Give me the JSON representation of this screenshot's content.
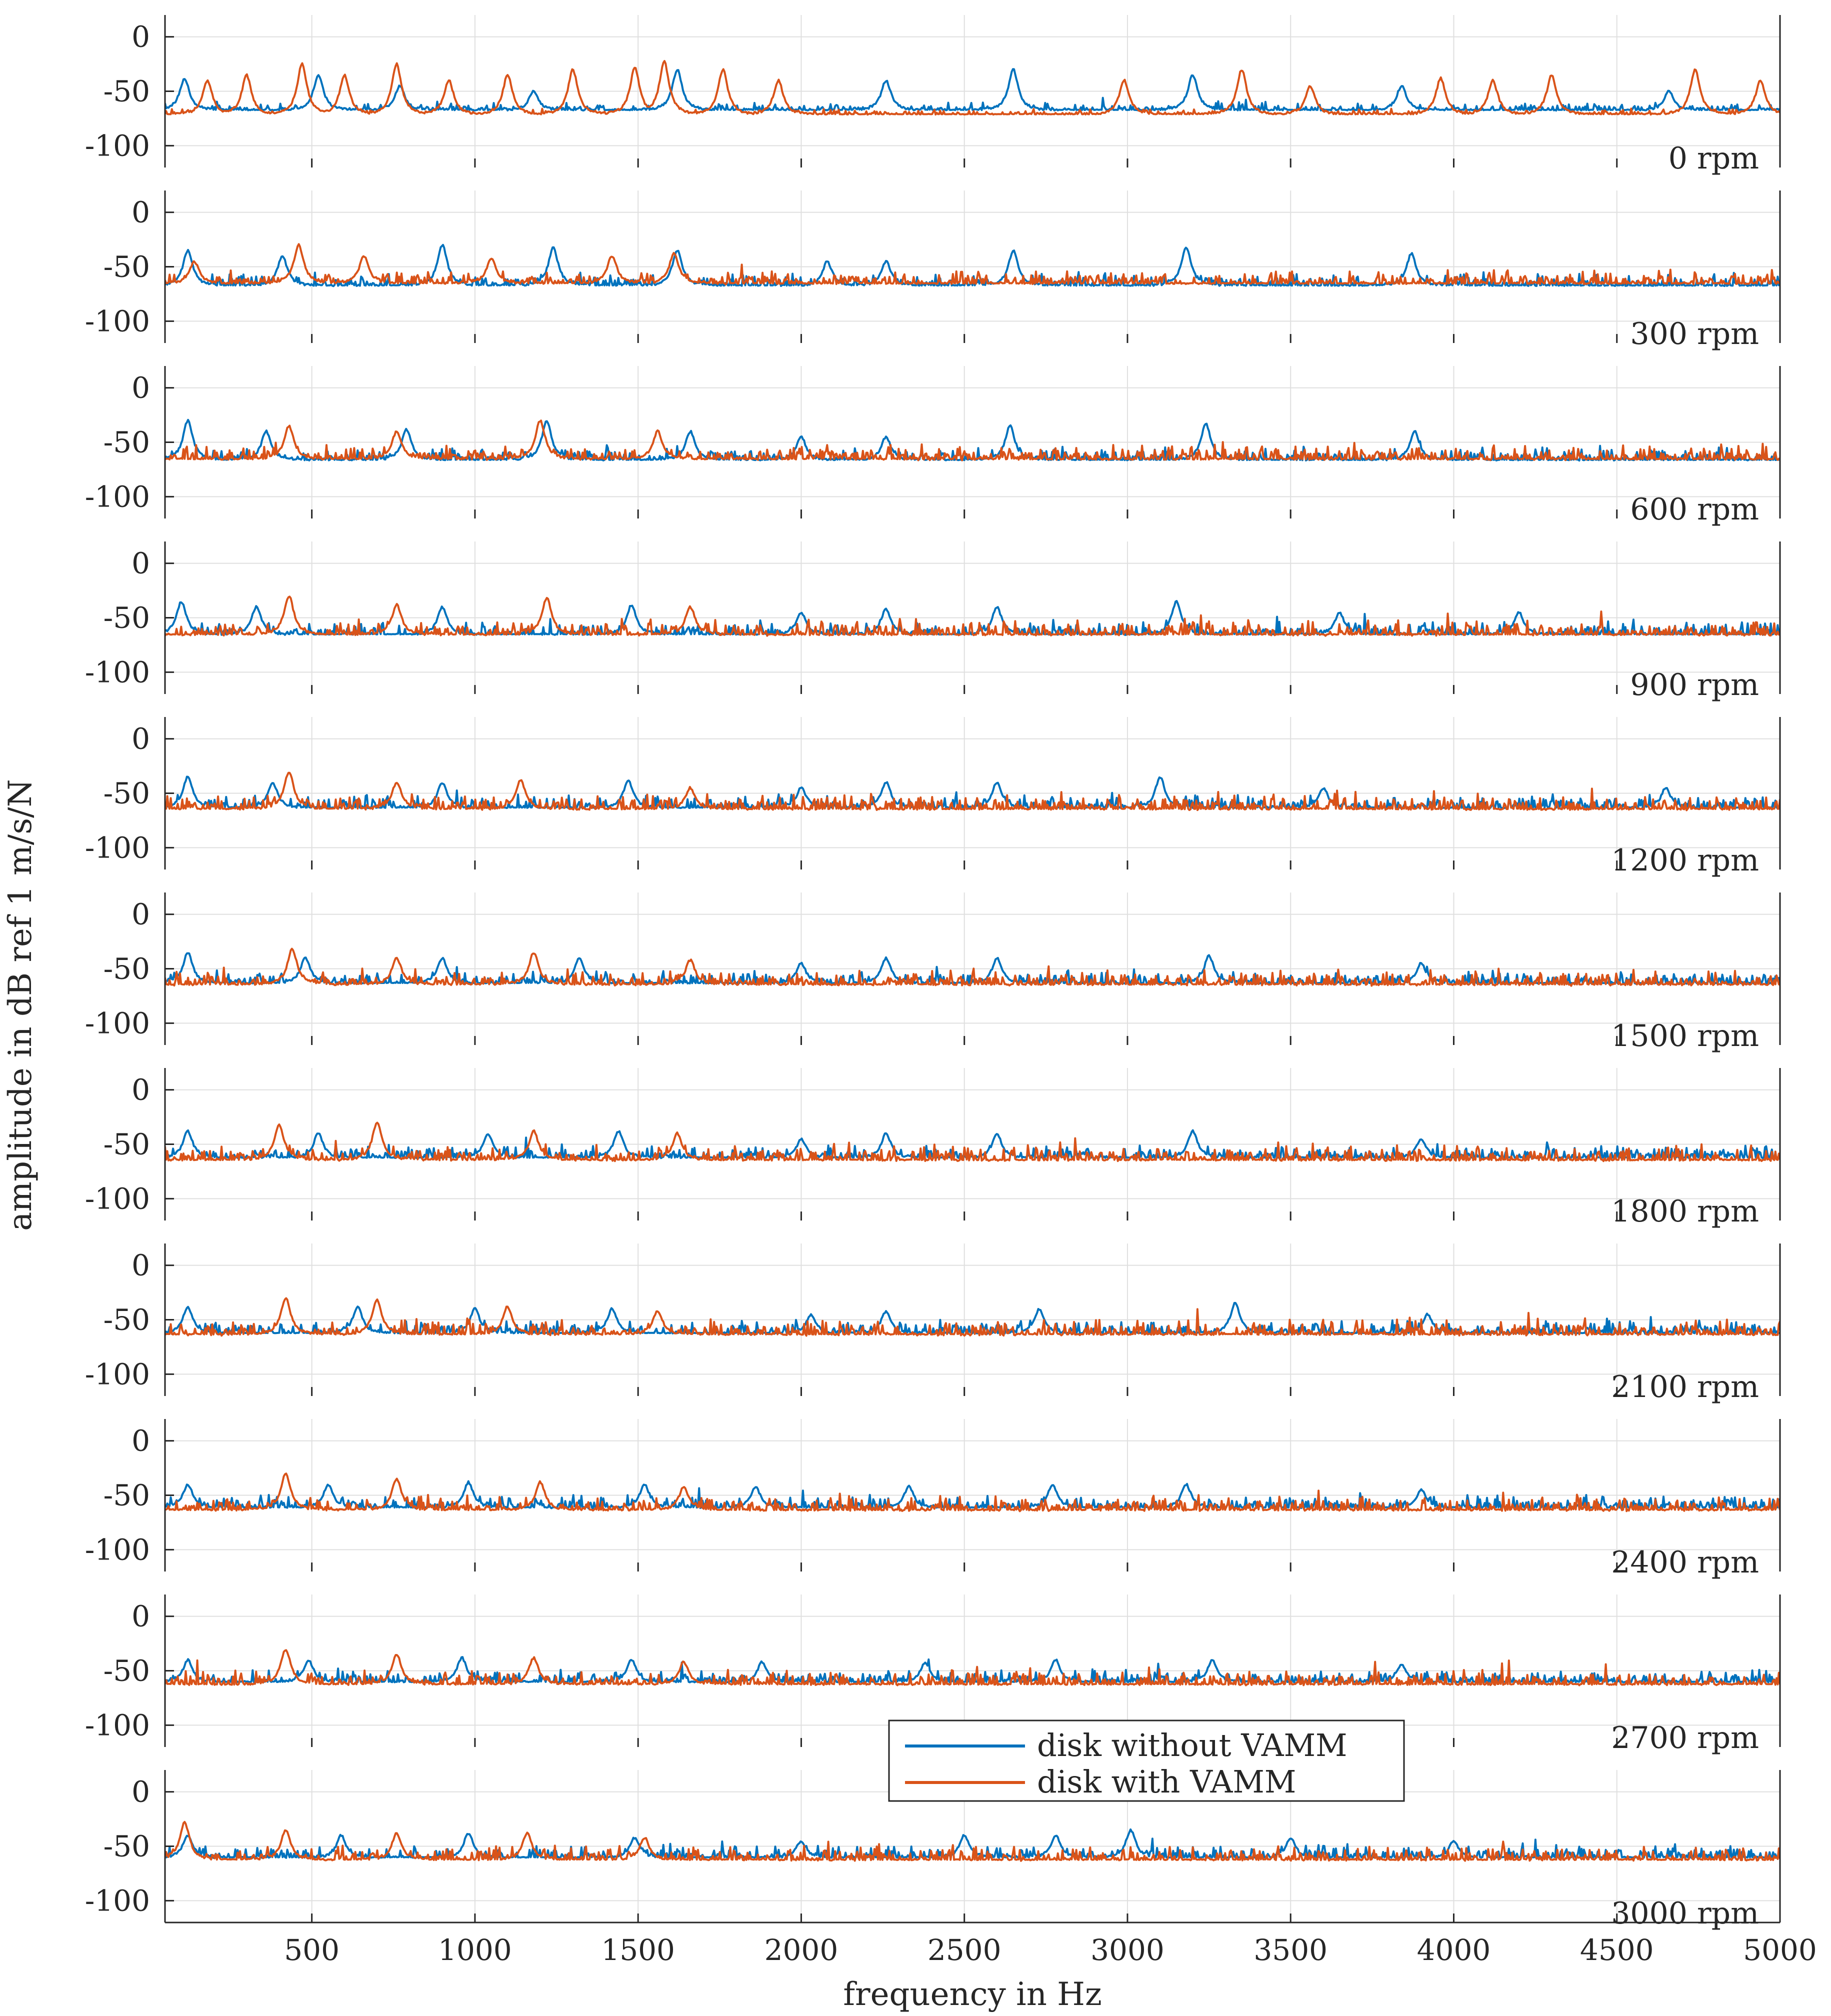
{
  "chart_data": {
    "type": "line",
    "xlabel": "frequency in Hz",
    "ylabel": "amplitude in dB ref 1 m/s/N",
    "xlim": [
      50,
      5000
    ],
    "ylim": [
      -120,
      20
    ],
    "x_ticks": [
      500,
      1000,
      1500,
      2000,
      2500,
      3000,
      3500,
      4000,
      4500,
      5000
    ],
    "y_ticks": [
      0,
      -50,
      -100
    ],
    "grid": true,
    "legend_position": "bottom-center (inside 2700 rpm / 3000 rpm panels)",
    "legend": [
      "disk without VAMM",
      "disk with VAMM"
    ],
    "colors": {
      "without": "#0072BD",
      "with": "#D95319"
    },
    "panels": [
      {
        "label": "0 rpm",
        "rpm": 0,
        "series": [
          {
            "name": "disk without VAMM",
            "baseline_db": -68,
            "noise_db": 4,
            "peaks": [
              [
                110,
                -38
              ],
              [
                520,
                -35
              ],
              [
                770,
                -45
              ],
              [
                1180,
                -50
              ],
              [
                1620,
                -30
              ],
              [
                2260,
                -40
              ],
              [
                2650,
                -30
              ],
              [
                3200,
                -35
              ],
              [
                3840,
                -45
              ],
              [
                4660,
                -50
              ]
            ]
          },
          {
            "name": "disk with VAMM",
            "baseline_db": -72,
            "noise_db": 3,
            "peaks": [
              [
                180,
                -40
              ],
              [
                300,
                -35
              ],
              [
                470,
                -25
              ],
              [
                600,
                -35
              ],
              [
                760,
                -25
              ],
              [
                920,
                -40
              ],
              [
                1100,
                -35
              ],
              [
                1300,
                -30
              ],
              [
                1490,
                -28
              ],
              [
                1580,
                -22
              ],
              [
                1760,
                -30
              ],
              [
                1930,
                -40
              ],
              [
                2990,
                -40
              ],
              [
                3350,
                -30
              ],
              [
                3560,
                -45
              ],
              [
                3960,
                -38
              ],
              [
                4120,
                -40
              ],
              [
                4300,
                -35
              ],
              [
                4740,
                -30
              ],
              [
                4940,
                -40
              ]
            ]
          }
        ]
      },
      {
        "label": "300 rpm",
        "rpm": 300,
        "series": [
          {
            "name": "disk without VAMM",
            "baseline_db": -68,
            "noise_db": 6,
            "peaks": [
              [
                120,
                -35
              ],
              [
                410,
                -40
              ],
              [
                900,
                -30
              ],
              [
                1240,
                -32
              ],
              [
                1620,
                -35
              ],
              [
                2080,
                -45
              ],
              [
                2260,
                -45
              ],
              [
                2650,
                -35
              ],
              [
                3180,
                -32
              ],
              [
                3870,
                -38
              ]
            ]
          },
          {
            "name": "disk with VAMM",
            "baseline_db": -66,
            "noise_db": 6,
            "peaks": [
              [
                140,
                -45
              ],
              [
                460,
                -30
              ],
              [
                660,
                -40
              ],
              [
                1050,
                -42
              ],
              [
                1420,
                -40
              ],
              [
                1610,
                -38
              ]
            ]
          }
        ]
      },
      {
        "label": "600 rpm",
        "rpm": 600,
        "series": [
          {
            "name": "disk without VAMM",
            "baseline_db": -67,
            "noise_db": 6,
            "peaks": [
              [
                120,
                -30
              ],
              [
                360,
                -40
              ],
              [
                790,
                -38
              ],
              [
                1220,
                -30
              ],
              [
                1660,
                -40
              ],
              [
                2000,
                -45
              ],
              [
                2260,
                -45
              ],
              [
                2640,
                -35
              ],
              [
                3240,
                -33
              ],
              [
                3880,
                -40
              ]
            ]
          },
          {
            "name": "disk with VAMM",
            "baseline_db": -66,
            "noise_db": 7,
            "peaks": [
              [
                430,
                -35
              ],
              [
                760,
                -40
              ],
              [
                1200,
                -30
              ],
              [
                1560,
                -40
              ]
            ]
          }
        ]
      },
      {
        "label": "900 rpm",
        "rpm": 900,
        "series": [
          {
            "name": "disk without VAMM",
            "baseline_db": -66,
            "noise_db": 6,
            "peaks": [
              [
                100,
                -35
              ],
              [
                330,
                -40
              ],
              [
                900,
                -40
              ],
              [
                1480,
                -38
              ],
              [
                2000,
                -45
              ],
              [
                2260,
                -42
              ],
              [
                2600,
                -40
              ],
              [
                3150,
                -35
              ],
              [
                3650,
                -45
              ],
              [
                4200,
                -45
              ]
            ]
          },
          {
            "name": "disk with VAMM",
            "baseline_db": -66,
            "noise_db": 7,
            "peaks": [
              [
                430,
                -30
              ],
              [
                760,
                -38
              ],
              [
                1220,
                -32
              ],
              [
                1660,
                -40
              ]
            ]
          }
        ]
      },
      {
        "label": "1200 rpm",
        "rpm": 1200,
        "series": [
          {
            "name": "disk without VAMM",
            "baseline_db": -64,
            "noise_db": 6,
            "peaks": [
              [
                120,
                -35
              ],
              [
                380,
                -40
              ],
              [
                900,
                -40
              ],
              [
                1470,
                -38
              ],
              [
                2000,
                -45
              ],
              [
                2260,
                -40
              ],
              [
                2600,
                -40
              ],
              [
                3100,
                -35
              ],
              [
                3600,
                -45
              ],
              [
                4650,
                -45
              ]
            ]
          },
          {
            "name": "disk with VAMM",
            "baseline_db": -65,
            "noise_db": 7,
            "peaks": [
              [
                430,
                -30
              ],
              [
                760,
                -40
              ],
              [
                1140,
                -38
              ],
              [
                1660,
                -45
              ]
            ]
          }
        ]
      },
      {
        "label": "1500 rpm",
        "rpm": 1500,
        "series": [
          {
            "name": "disk without VAMM",
            "baseline_db": -64,
            "noise_db": 6,
            "peaks": [
              [
                120,
                -35
              ],
              [
                480,
                -40
              ],
              [
                900,
                -40
              ],
              [
                1320,
                -40
              ],
              [
                2000,
                -45
              ],
              [
                2260,
                -40
              ],
              [
                2600,
                -40
              ],
              [
                3250,
                -38
              ],
              [
                3900,
                -45
              ]
            ]
          },
          {
            "name": "disk with VAMM",
            "baseline_db": -65,
            "noise_db": 7,
            "peaks": [
              [
                440,
                -32
              ],
              [
                760,
                -40
              ],
              [
                1180,
                -35
              ],
              [
                1660,
                -42
              ]
            ]
          }
        ]
      },
      {
        "label": "1800 rpm",
        "rpm": 1800,
        "series": [
          {
            "name": "disk without VAMM",
            "baseline_db": -63,
            "noise_db": 6,
            "peaks": [
              [
                120,
                -38
              ],
              [
                520,
                -40
              ],
              [
                1040,
                -40
              ],
              [
                1440,
                -38
              ],
              [
                2000,
                -45
              ],
              [
                2260,
                -40
              ],
              [
                2600,
                -40
              ],
              [
                3200,
                -38
              ],
              [
                3900,
                -45
              ]
            ]
          },
          {
            "name": "disk with VAMM",
            "baseline_db": -65,
            "noise_db": 7,
            "peaks": [
              [
                400,
                -32
              ],
              [
                700,
                -30
              ],
              [
                1180,
                -38
              ],
              [
                1620,
                -40
              ]
            ]
          }
        ]
      },
      {
        "label": "2100 rpm",
        "rpm": 2100,
        "series": [
          {
            "name": "disk without VAMM",
            "baseline_db": -63,
            "noise_db": 6,
            "peaks": [
              [
                120,
                -38
              ],
              [
                640,
                -38
              ],
              [
                1000,
                -40
              ],
              [
                1420,
                -40
              ],
              [
                2030,
                -45
              ],
              [
                2260,
                -42
              ],
              [
                2730,
                -40
              ],
              [
                3330,
                -35
              ],
              [
                3920,
                -45
              ]
            ]
          },
          {
            "name": "disk with VAMM",
            "baseline_db": -64,
            "noise_db": 7,
            "peaks": [
              [
                420,
                -30
              ],
              [
                700,
                -32
              ],
              [
                1100,
                -38
              ],
              [
                1560,
                -42
              ]
            ]
          }
        ]
      },
      {
        "label": "2400 rpm",
        "rpm": 2400,
        "series": [
          {
            "name": "disk without VAMM",
            "baseline_db": -62,
            "noise_db": 6,
            "peaks": [
              [
                120,
                -40
              ],
              [
                550,
                -40
              ],
              [
                980,
                -38
              ],
              [
                1520,
                -40
              ],
              [
                1860,
                -42
              ],
              [
                2330,
                -42
              ],
              [
                2770,
                -40
              ],
              [
                3180,
                -40
              ],
              [
                3900,
                -45
              ]
            ]
          },
          {
            "name": "disk with VAMM",
            "baseline_db": -64,
            "noise_db": 7,
            "peaks": [
              [
                420,
                -30
              ],
              [
                760,
                -35
              ],
              [
                1200,
                -38
              ],
              [
                1640,
                -42
              ]
            ]
          }
        ]
      },
      {
        "label": "2700 rpm",
        "rpm": 2700,
        "series": [
          {
            "name": "disk without VAMM",
            "baseline_db": -61,
            "noise_db": 6,
            "peaks": [
              [
                120,
                -40
              ],
              [
                490,
                -40
              ],
              [
                960,
                -38
              ],
              [
                1480,
                -40
              ],
              [
                1880,
                -42
              ],
              [
                2380,
                -42
              ],
              [
                2780,
                -40
              ],
              [
                3260,
                -40
              ],
              [
                3840,
                -45
              ]
            ]
          },
          {
            "name": "disk with VAMM",
            "baseline_db": -63,
            "noise_db": 7,
            "peaks": [
              [
                420,
                -30
              ],
              [
                760,
                -35
              ],
              [
                1180,
                -38
              ],
              [
                1640,
                -42
              ]
            ]
          }
        ]
      },
      {
        "label": "3000 rpm",
        "rpm": 3000,
        "series": [
          {
            "name": "disk without VAMM",
            "baseline_db": -61,
            "noise_db": 6,
            "peaks": [
              [
                120,
                -40
              ],
              [
                590,
                -40
              ],
              [
                980,
                -38
              ],
              [
                1490,
                -42
              ],
              [
                2000,
                -45
              ],
              [
                2500,
                -40
              ],
              [
                2780,
                -40
              ],
              [
                3010,
                -35
              ],
              [
                3500,
                -42
              ],
              [
                4000,
                -45
              ]
            ]
          },
          {
            "name": "disk with VAMM",
            "baseline_db": -63,
            "noise_db": 7,
            "peaks": [
              [
                110,
                -28
              ],
              [
                420,
                -35
              ],
              [
                760,
                -38
              ],
              [
                1160,
                -38
              ],
              [
                1520,
                -42
              ]
            ]
          }
        ]
      }
    ]
  }
}
